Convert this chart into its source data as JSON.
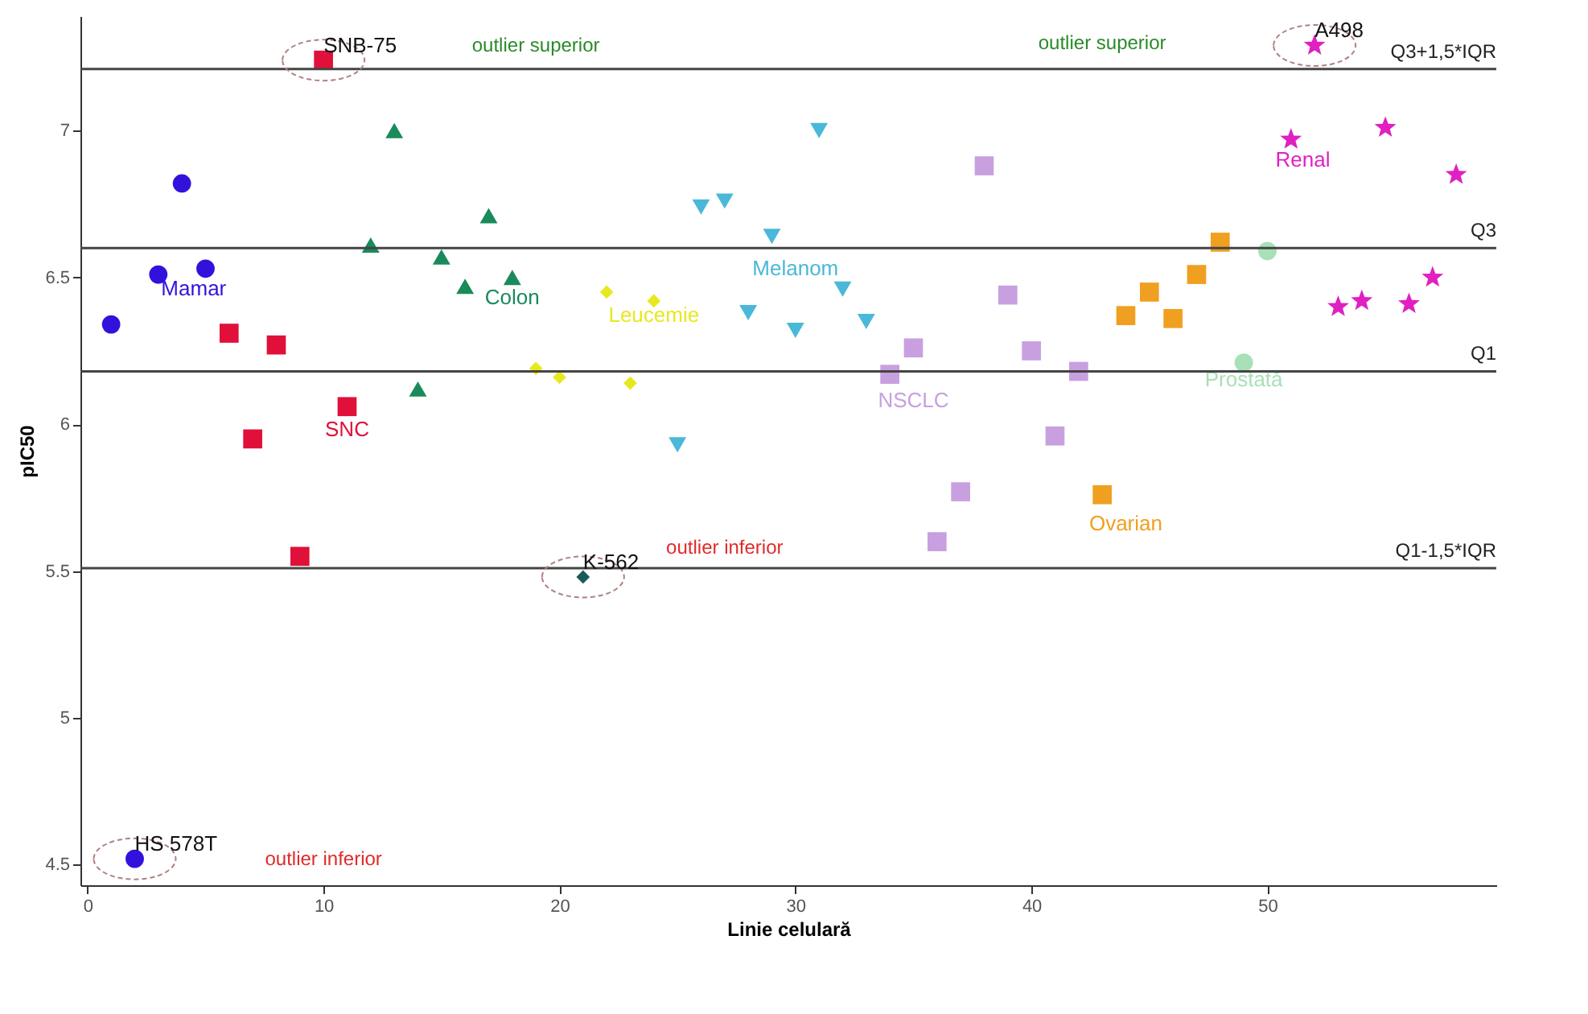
{
  "chart_data": {
    "type": "scatter",
    "xlabel": "Linie celulară",
    "ylabel": "pIC50",
    "xlim": [
      -0.3,
      59.7
    ],
    "ylim": [
      4.43,
      7.39
    ],
    "xticks": [
      0,
      10,
      20,
      30,
      40,
      50
    ],
    "yticks": [
      4.5,
      5,
      5.5,
      6,
      6.5,
      7
    ],
    "grid": false,
    "legend": false,
    "series": [
      {
        "name": "Mamar",
        "color": "#3311dd",
        "marker": "circle",
        "x": [
          1,
          2,
          3,
          4,
          5
        ],
        "values": [
          6.34,
          4.52,
          6.51,
          6.82,
          6.53
        ]
      },
      {
        "name": "SNC",
        "color": "#e0103a",
        "marker": "square",
        "x": [
          6,
          7,
          8,
          9,
          10,
          11
        ],
        "values": [
          6.31,
          5.95,
          6.27,
          5.55,
          7.24,
          6.06
        ]
      },
      {
        "name": "Colon",
        "color": "#1a8a5a",
        "marker": "triangle",
        "x": [
          12,
          13,
          14,
          15,
          16,
          17,
          18
        ],
        "values": [
          6.61,
          7.0,
          6.12,
          6.57,
          6.47,
          6.71,
          6.5
        ]
      },
      {
        "name": "Leucemie",
        "color": "#e8e820",
        "marker": "diamond",
        "x": [
          19,
          20,
          22,
          23,
          24
        ],
        "values": [
          6.19,
          6.16,
          6.45,
          6.14,
          6.42
        ]
      },
      {
        "color": "#1a5a5a",
        "marker": "diamond",
        "x": [
          21
        ],
        "values": [
          5.48
        ]
      },
      {
        "name": "Melanom",
        "color": "#4ab8d8",
        "marker": "triangle-down",
        "x": [
          25,
          26,
          27,
          28,
          29,
          30,
          31,
          32,
          33
        ],
        "values": [
          5.93,
          6.74,
          6.76,
          6.38,
          6.64,
          6.32,
          7.0,
          6.46,
          6.35
        ]
      },
      {
        "name": "NSCLC",
        "color": "#c8a0e0",
        "marker": "square",
        "x": [
          34,
          35,
          36,
          37,
          38,
          39,
          40,
          41,
          42
        ],
        "values": [
          6.17,
          6.26,
          5.6,
          5.77,
          6.88,
          6.44,
          6.25,
          5.96,
          6.18
        ]
      },
      {
        "name": "Ovarian",
        "color": "#f0a020",
        "marker": "square",
        "x": [
          43,
          44,
          45,
          46,
          47,
          48
        ],
        "values": [
          5.76,
          6.37,
          6.45,
          6.36,
          6.51,
          6.62
        ]
      },
      {
        "name": "Prostată",
        "color": "#a8e0b8",
        "marker": "circle",
        "x": [
          49,
          50
        ],
        "values": [
          6.21,
          6.59
        ]
      },
      {
        "name": "Renal",
        "color": "#e020c0",
        "marker": "star",
        "x": [
          51,
          52,
          53,
          54,
          55,
          56,
          57,
          58
        ],
        "values": [
          6.97,
          7.29,
          6.4,
          6.42,
          7.01,
          6.41,
          6.5,
          6.85
        ]
      }
    ],
    "ref_lines": [
      {
        "axis": "y",
        "value": 7.21,
        "label": "Q3+1,5*IQR"
      },
      {
        "axis": "y",
        "value": 6.6,
        "label": "Q3"
      },
      {
        "axis": "y",
        "value": 6.18,
        "label": "Q1"
      },
      {
        "axis": "y",
        "value": 5.51,
        "label": "Q1-1,5*IQR"
      }
    ],
    "annotations": [
      {
        "text": "SNB-75",
        "x": 10,
        "y": 7.24
      },
      {
        "text": "A498",
        "x": 52,
        "y": 7.29
      },
      {
        "text": "K-562",
        "x": 21,
        "y": 5.48
      },
      {
        "text": "HS 578T",
        "x": 2,
        "y": 4.52
      },
      "outlier superior",
      "outlier superior",
      "outlier inferior",
      "outlier inferior"
    ]
  }
}
